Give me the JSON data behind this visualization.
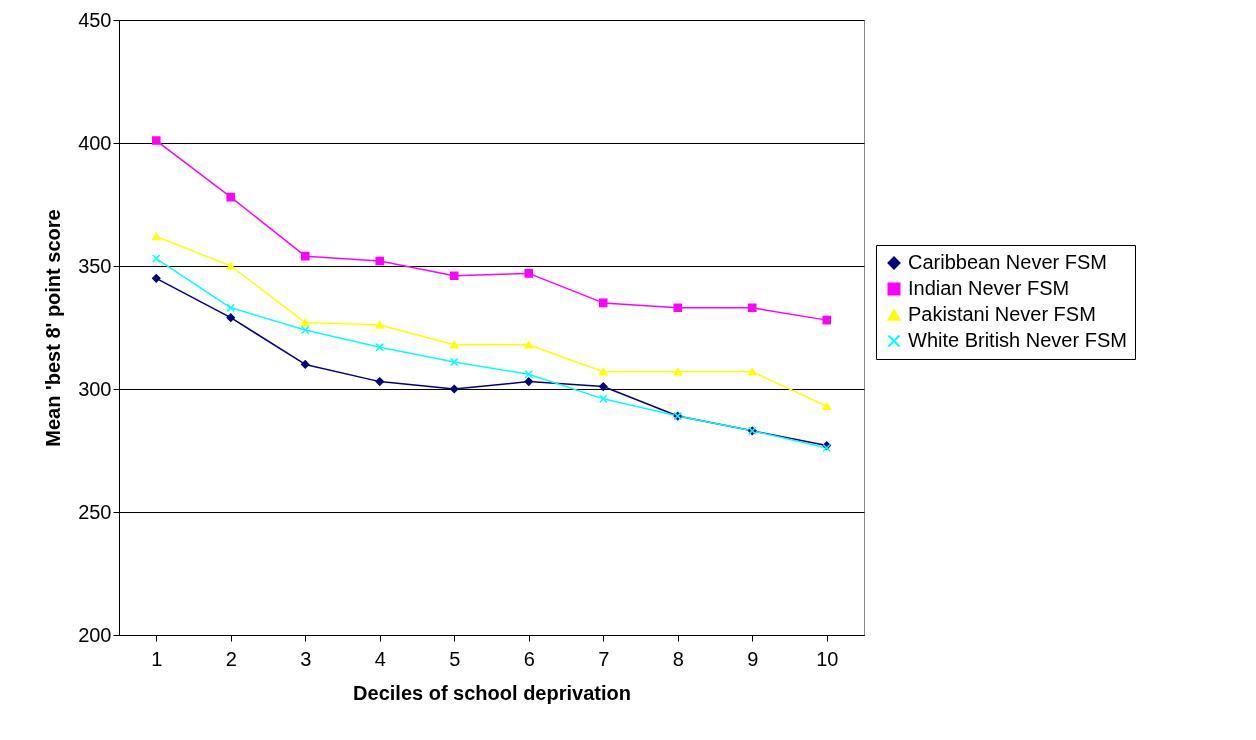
{
  "chart_data": {
    "type": "line",
    "xlabel": "Deciles of school deprivation",
    "ylabel": "Mean 'best 8' point score",
    "categories": [
      "1",
      "2",
      "3",
      "4",
      "5",
      "6",
      "7",
      "8",
      "9",
      "10"
    ],
    "series": [
      {
        "name": "Caribbean Never FSM",
        "color": "#000080",
        "marker": "diamond",
        "values": [
          345,
          329,
          310,
          303,
          300,
          303,
          301,
          289,
          283,
          277
        ]
      },
      {
        "name": "Indian Never FSM",
        "color": "#ff00ff",
        "marker": "square",
        "values": [
          401,
          378,
          354,
          352,
          346,
          347,
          335,
          333,
          333,
          328
        ]
      },
      {
        "name": "Pakistani Never FSM",
        "color": "#ffff00",
        "marker": "triangle",
        "values": [
          362,
          350,
          327,
          326,
          318,
          318,
          307,
          307,
          307,
          293
        ]
      },
      {
        "name": "White British Never FSM",
        "color": "#00ffff",
        "marker": "cross",
        "values": [
          353,
          333,
          324,
          317,
          311,
          306,
          296,
          289,
          283,
          276
        ]
      }
    ],
    "ylim": [
      200,
      450
    ],
    "yticks": [
      200,
      250,
      300,
      350,
      400,
      450
    ],
    "grid": "y",
    "legend": "right",
    "line_style": "solid"
  }
}
